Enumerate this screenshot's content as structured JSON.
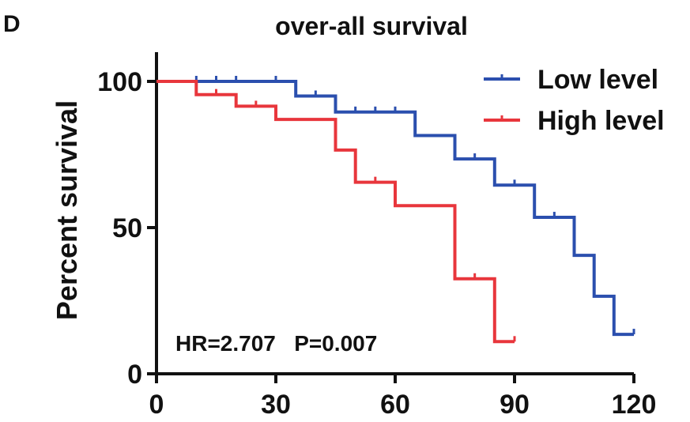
{
  "chart_data": {
    "type": "line",
    "panel_label": "D",
    "title": "over-all survival",
    "xlabel": "",
    "ylabel": "Percent survival",
    "xlim": [
      0,
      120
    ],
    "ylim": [
      0,
      100
    ],
    "x_ticks": [
      0,
      30,
      60,
      90,
      120
    ],
    "y_ticks": [
      0,
      50,
      100
    ],
    "legend_position": "top-right",
    "annotation": "HR=2.707   P=0.007",
    "series": [
      {
        "name": "Low level",
        "color": "#2b4fae",
        "steps": [
          [
            0,
            100
          ],
          [
            35,
            100
          ],
          [
            35,
            95
          ],
          [
            45,
            95
          ],
          [
            45,
            89.5
          ],
          [
            65,
            89.5
          ],
          [
            65,
            81.5
          ],
          [
            75,
            81.5
          ],
          [
            75,
            73.5
          ],
          [
            85,
            73.5
          ],
          [
            85,
            64.5
          ],
          [
            95,
            64.5
          ],
          [
            95,
            53.5
          ],
          [
            105,
            53.5
          ],
          [
            105,
            40.5
          ],
          [
            110,
            40.5
          ],
          [
            110,
            26.5
          ],
          [
            115,
            26.5
          ],
          [
            115,
            13.5
          ],
          [
            120,
            13.5
          ]
        ],
        "censor": [
          [
            10,
            100
          ],
          [
            15,
            100
          ],
          [
            20,
            100
          ],
          [
            30,
            100
          ],
          [
            40,
            95
          ],
          [
            50,
            89.5
          ],
          [
            55,
            89.5
          ],
          [
            60,
            89.5
          ],
          [
            80,
            73.5
          ],
          [
            90,
            64.5
          ],
          [
            100,
            53.5
          ],
          [
            120,
            13.5
          ]
        ]
      },
      {
        "name": "High level",
        "color": "#e8363c",
        "steps": [
          [
            0,
            100
          ],
          [
            10,
            100
          ],
          [
            10,
            95.5
          ],
          [
            20,
            95.5
          ],
          [
            20,
            91.5
          ],
          [
            30,
            91.5
          ],
          [
            30,
            87
          ],
          [
            45,
            87
          ],
          [
            45,
            76.5
          ],
          [
            50,
            76.5
          ],
          [
            50,
            65.5
          ],
          [
            60,
            65.5
          ],
          [
            60,
            57.5
          ],
          [
            75,
            57.5
          ],
          [
            75,
            32.5
          ],
          [
            85,
            32.5
          ],
          [
            85,
            11
          ],
          [
            90,
            11
          ]
        ],
        "censor": [
          [
            15,
            95.5
          ],
          [
            25,
            91.5
          ],
          [
            55,
            65.5
          ],
          [
            80,
            32.5
          ],
          [
            90,
            11
          ]
        ]
      }
    ]
  }
}
